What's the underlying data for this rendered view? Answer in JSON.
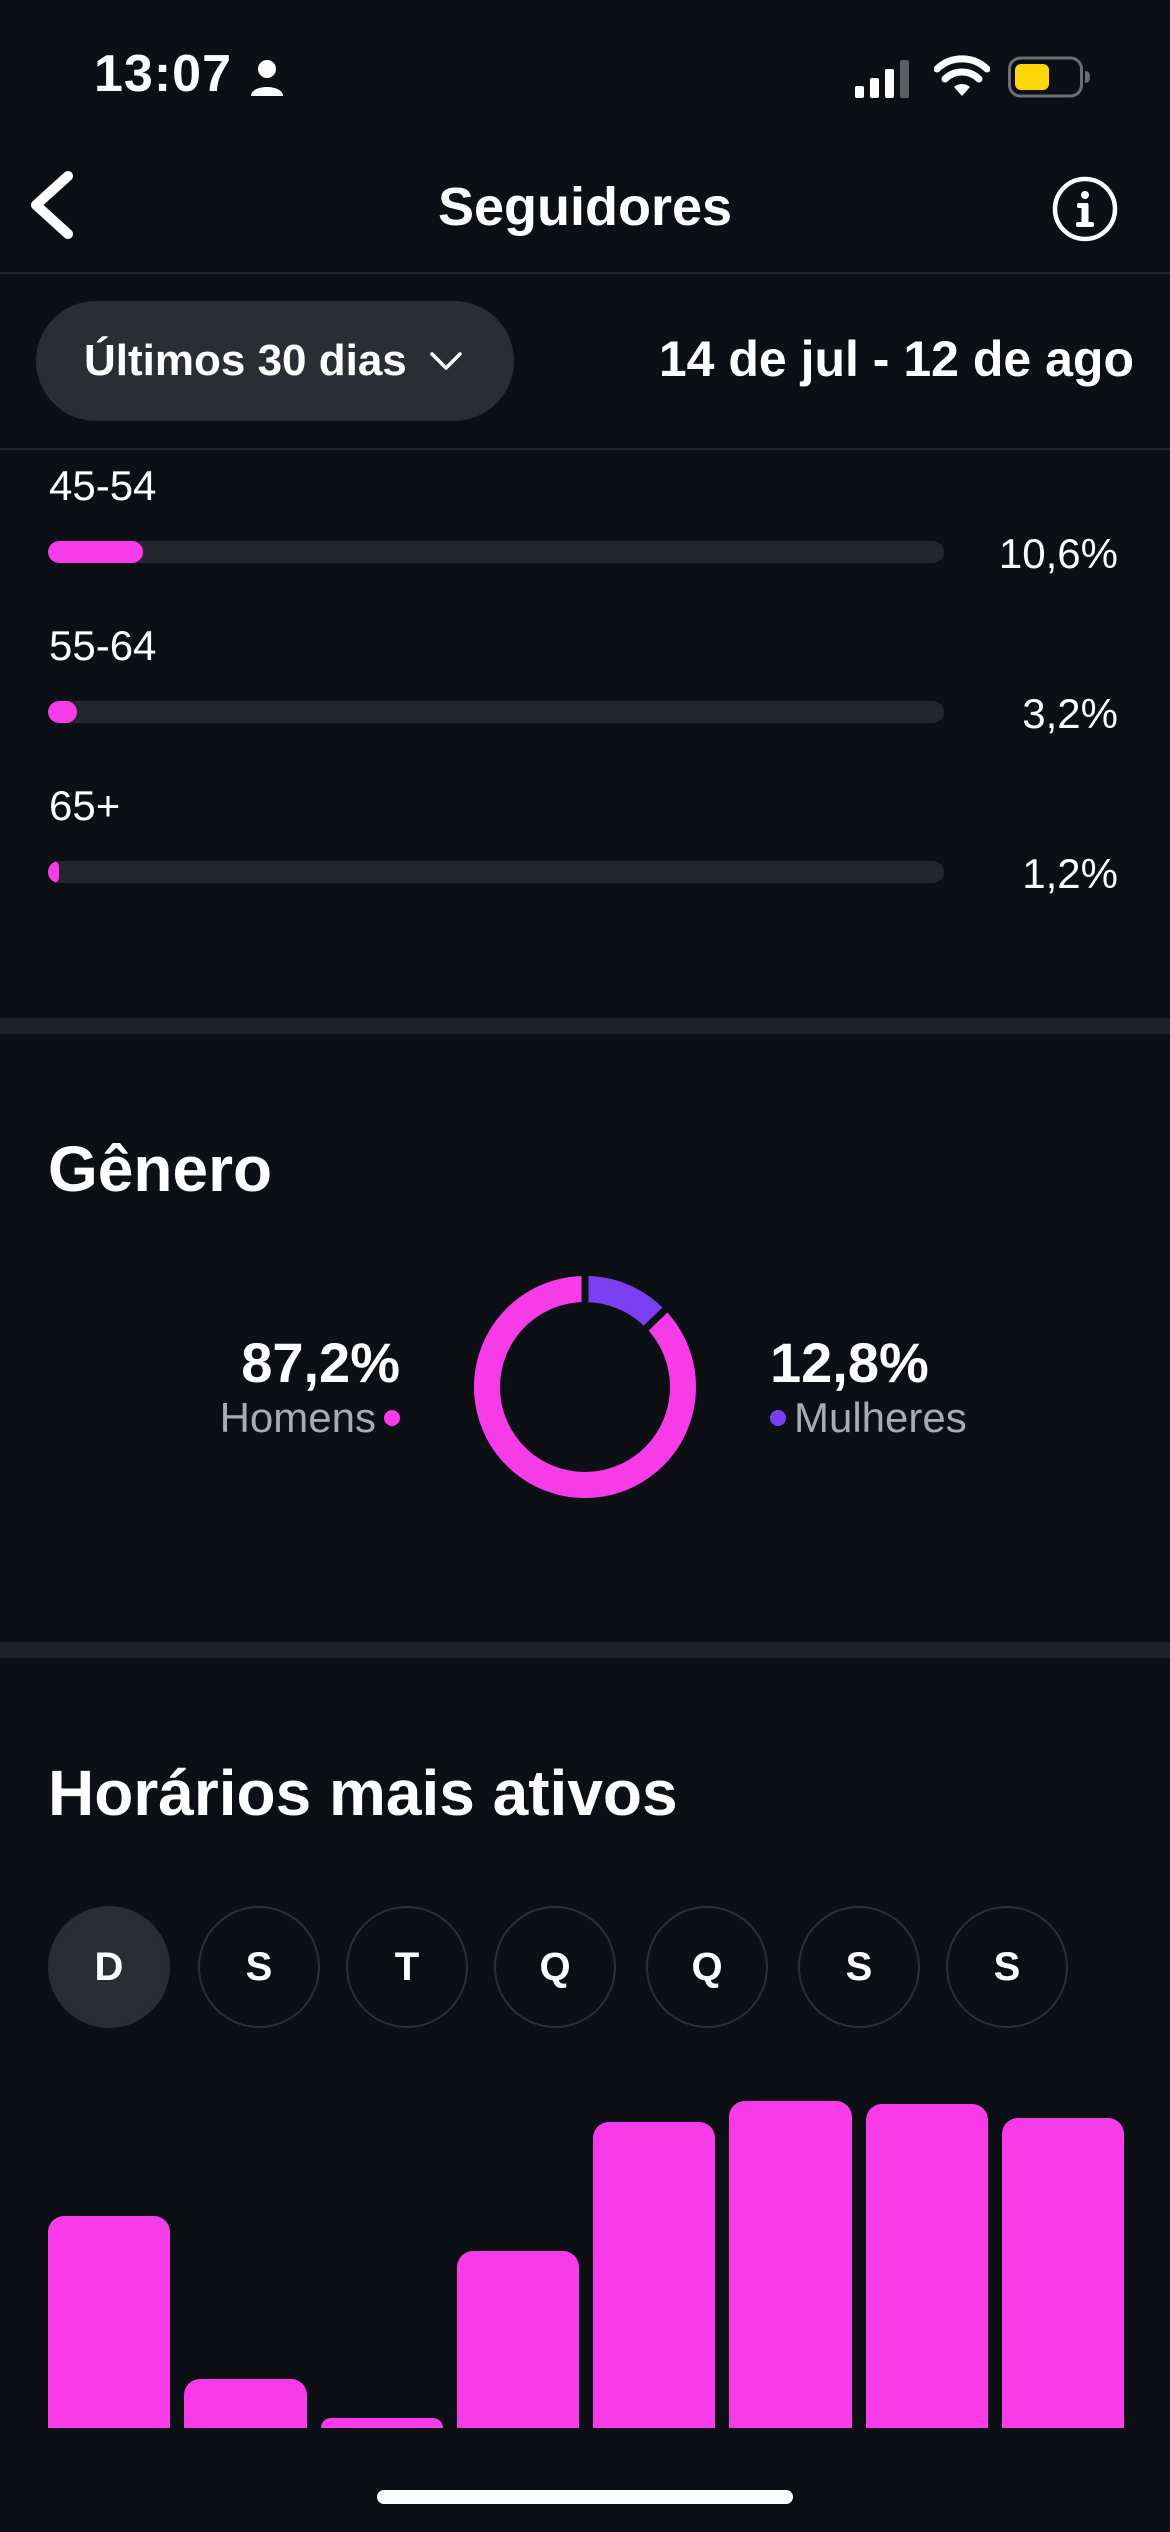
{
  "status_bar": {
    "time": "13:07",
    "battery_color": "#ffd60a"
  },
  "header": {
    "title": "Seguidores",
    "back_icon": "chevron-left-icon",
    "info_icon": "info-icon"
  },
  "filter": {
    "period_label": "Últimos 30 dias",
    "date_range": "14 de jul - 12 de ago"
  },
  "age_groups": [
    {
      "label": "45-54",
      "value_text": "10,6%",
      "percent": 10.6
    },
    {
      "label": "55-64",
      "value_text": "3,2%",
      "percent": 3.2
    },
    {
      "label": "65+",
      "value_text": "1,2%",
      "percent": 1.2
    }
  ],
  "gender": {
    "title": "Gênero",
    "men": {
      "percent_text": "87,2%",
      "label": "Homens",
      "percent": 87.2,
      "color": "#f73be9"
    },
    "women": {
      "percent_text": "12,8%",
      "label": "Mulheres",
      "percent": 12.8,
      "color": "#7b3ff2"
    }
  },
  "active_hours": {
    "title": "Horários mais ativos",
    "days": [
      "D",
      "S",
      "T",
      "Q",
      "Q",
      "S",
      "S"
    ],
    "selected_day_index": 0,
    "bar_levels": [
      0.61,
      0.14,
      0.03,
      0.51,
      0.88,
      0.94,
      0.93,
      0.89
    ],
    "bar_color": "#f73be9"
  }
}
